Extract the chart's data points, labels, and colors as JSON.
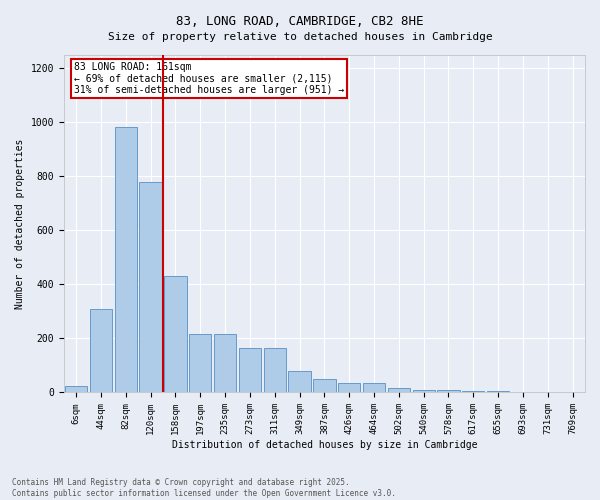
{
  "title": "83, LONG ROAD, CAMBRIDGE, CB2 8HE",
  "subtitle": "Size of property relative to detached houses in Cambridge",
  "xlabel": "Distribution of detached houses by size in Cambridge",
  "ylabel": "Number of detached properties",
  "bar_labels": [
    "6sqm",
    "44sqm",
    "82sqm",
    "120sqm",
    "158sqm",
    "197sqm",
    "235sqm",
    "273sqm",
    "311sqm",
    "349sqm",
    "387sqm",
    "426sqm",
    "464sqm",
    "502sqm",
    "540sqm",
    "578sqm",
    "617sqm",
    "655sqm",
    "693sqm",
    "731sqm",
    "769sqm"
  ],
  "bar_values": [
    25,
    310,
    985,
    780,
    430,
    215,
    215,
    165,
    165,
    80,
    50,
    35,
    35,
    15,
    10,
    10,
    5,
    5,
    3,
    3,
    2
  ],
  "bar_color": "#aecce8",
  "bar_edge_color": "#6699cc",
  "background_color": "#e8edf5",
  "grid_color": "#ffffff",
  "vline_color": "#cc0000",
  "annotation_title": "83 LONG ROAD: 161sqm",
  "annotation_line1": "← 69% of detached houses are smaller (2,115)",
  "annotation_line2": "31% of semi-detached houses are larger (951) →",
  "annotation_box_color": "#ffffff",
  "annotation_box_edge_color": "#cc0000",
  "footer_line1": "Contains HM Land Registry data © Crown copyright and database right 2025.",
  "footer_line2": "Contains public sector information licensed under the Open Government Licence v3.0.",
  "ylim": [
    0,
    1250
  ],
  "yticks": [
    0,
    200,
    400,
    600,
    800,
    1000,
    1200
  ],
  "title_fontsize": 9,
  "subtitle_fontsize": 8,
  "axis_label_fontsize": 7,
  "tick_fontsize": 6.5,
  "annotation_fontsize": 7,
  "footer_fontsize": 5.5
}
